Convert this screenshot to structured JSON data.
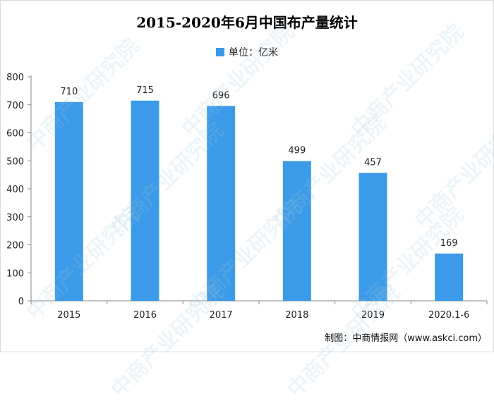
{
  "chart_data": {
    "type": "bar",
    "title": "2015-2020年6月中国布产量统计",
    "legend": [
      {
        "name": "单位：亿米",
        "color": "#3b9be8"
      }
    ],
    "categories": [
      "2015",
      "2016",
      "2017",
      "2018",
      "2019",
      "2020.1-6"
    ],
    "series": [
      {
        "name": "单位：亿米",
        "values": [
          710,
          715,
          696,
          499,
          457,
          169
        ]
      }
    ],
    "data_labels": [
      "710",
      "715",
      "696",
      "499",
      "457",
      "169"
    ],
    "ylim": [
      0,
      800
    ],
    "yticks": [
      0,
      100,
      200,
      300,
      400,
      500,
      600,
      700,
      800
    ],
    "grid": false,
    "legend_position": "top-center"
  },
  "watermark_text": "中商产业研究院",
  "credit": "制图：中商情报网（www.askci.com）"
}
